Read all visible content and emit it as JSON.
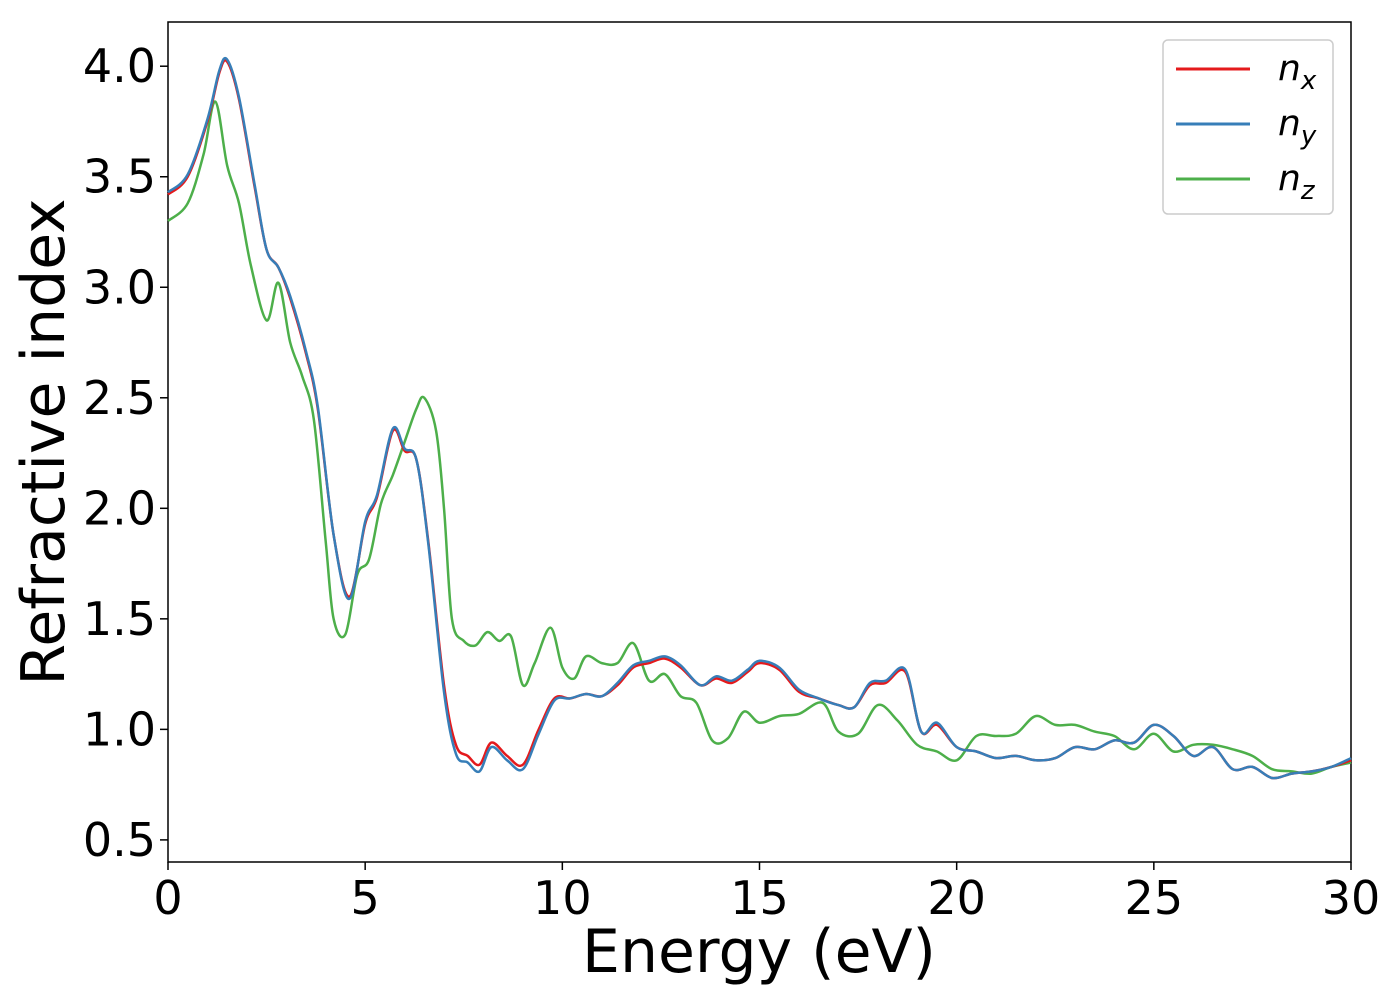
{
  "chart_data": {
    "type": "line",
    "xlabel": "Energy (eV)",
    "ylabel": "Refractive index",
    "xlim": [
      0,
      30
    ],
    "ylim": [
      0.4,
      4.2
    ],
    "xticks": [
      0,
      5,
      10,
      15,
      20,
      25,
      30
    ],
    "xtick_labels": [
      "0",
      "5",
      "10",
      "15",
      "20",
      "25",
      "30"
    ],
    "yticks": [
      0.5,
      1.0,
      1.5,
      2.0,
      2.5,
      3.0,
      3.5,
      4.0
    ],
    "ytick_labels": [
      "0.5",
      "1.0",
      "1.5",
      "2.0",
      "2.5",
      "3.0",
      "3.5",
      "4.0"
    ],
    "grid": false,
    "legend_position": "top-right",
    "series": [
      {
        "name": "n",
        "subscript": "x",
        "color": "#e41a1c",
        "x": [
          0,
          0.5,
          1.0,
          1.3,
          1.5,
          1.8,
          2.2,
          2.5,
          2.8,
          3.1,
          3.5,
          3.8,
          4.2,
          4.6,
          5.0,
          5.3,
          5.7,
          6.0,
          6.3,
          6.6,
          7.0,
          7.3,
          7.6,
          7.9,
          8.2,
          8.6,
          9.0,
          9.4,
          9.8,
          10.2,
          10.6,
          11.0,
          11.4,
          11.8,
          12.2,
          12.6,
          13.0,
          13.5,
          13.9,
          14.3,
          14.7,
          15.0,
          15.5,
          16.0,
          16.5,
          17.0,
          17.4,
          17.8,
          18.2,
          18.7,
          19.1,
          19.5,
          20.0,
          20.5,
          21.0,
          21.5,
          22.0,
          22.5,
          23.0,
          23.5,
          24.0,
          24.5,
          25.0,
          25.5,
          26.0,
          26.5,
          27.0,
          27.5,
          28.0,
          28.5,
          29.0,
          29.5,
          30.0
        ],
        "y": [
          3.42,
          3.5,
          3.75,
          3.97,
          4.02,
          3.85,
          3.45,
          3.17,
          3.09,
          2.95,
          2.7,
          2.45,
          1.88,
          1.6,
          1.93,
          2.05,
          2.35,
          2.26,
          2.22,
          1.85,
          1.2,
          0.93,
          0.88,
          0.84,
          0.94,
          0.88,
          0.84,
          1.0,
          1.14,
          1.14,
          1.16,
          1.15,
          1.2,
          1.28,
          1.3,
          1.32,
          1.28,
          1.2,
          1.23,
          1.21,
          1.26,
          1.3,
          1.27,
          1.17,
          1.14,
          1.11,
          1.1,
          1.2,
          1.21,
          1.26,
          0.99,
          1.02,
          0.92,
          0.9,
          0.87,
          0.88,
          0.86,
          0.87,
          0.92,
          0.91,
          0.95,
          0.94,
          1.02,
          0.97,
          0.88,
          0.92,
          0.82,
          0.83,
          0.78,
          0.8,
          0.81,
          0.83,
          0.86
        ]
      },
      {
        "name": "n",
        "subscript": "y",
        "color": "#377eb8",
        "x": [
          0,
          0.5,
          1.0,
          1.3,
          1.5,
          1.8,
          2.2,
          2.5,
          2.8,
          3.1,
          3.5,
          3.8,
          4.2,
          4.6,
          5.0,
          5.3,
          5.7,
          6.0,
          6.3,
          6.6,
          7.0,
          7.3,
          7.6,
          7.9,
          8.2,
          8.6,
          9.0,
          9.4,
          9.8,
          10.2,
          10.6,
          11.0,
          11.4,
          11.8,
          12.2,
          12.6,
          13.0,
          13.5,
          13.9,
          14.3,
          14.7,
          15.0,
          15.5,
          16.0,
          16.5,
          17.0,
          17.4,
          17.8,
          18.2,
          18.7,
          19.1,
          19.5,
          20.0,
          20.5,
          21.0,
          21.5,
          22.0,
          22.5,
          23.0,
          23.5,
          24.0,
          24.5,
          25.0,
          25.5,
          26.0,
          26.5,
          27.0,
          27.5,
          28.0,
          28.5,
          29.0,
          29.5,
          30.0
        ],
        "y": [
          3.43,
          3.51,
          3.76,
          3.98,
          4.03,
          3.86,
          3.46,
          3.17,
          3.09,
          2.96,
          2.71,
          2.46,
          1.88,
          1.59,
          1.94,
          2.06,
          2.36,
          2.27,
          2.22,
          1.84,
          1.17,
          0.89,
          0.85,
          0.81,
          0.92,
          0.86,
          0.82,
          0.98,
          1.13,
          1.14,
          1.16,
          1.15,
          1.21,
          1.29,
          1.31,
          1.33,
          1.29,
          1.2,
          1.24,
          1.22,
          1.27,
          1.31,
          1.28,
          1.18,
          1.14,
          1.11,
          1.1,
          1.21,
          1.22,
          1.27,
          0.99,
          1.03,
          0.92,
          0.9,
          0.87,
          0.88,
          0.86,
          0.87,
          0.92,
          0.91,
          0.95,
          0.94,
          1.02,
          0.97,
          0.88,
          0.92,
          0.82,
          0.83,
          0.78,
          0.8,
          0.81,
          0.83,
          0.87
        ]
      },
      {
        "name": "n",
        "subscript": "z",
        "color": "#4daf4a",
        "x": [
          0,
          0.5,
          0.9,
          1.2,
          1.5,
          1.8,
          2.1,
          2.5,
          2.8,
          3.1,
          3.4,
          3.7,
          4.0,
          4.2,
          4.5,
          4.8,
          5.1,
          5.4,
          5.7,
          6.0,
          6.3,
          6.5,
          6.8,
          7.0,
          7.2,
          7.5,
          7.8,
          8.1,
          8.4,
          8.7,
          9.0,
          9.3,
          9.7,
          10.0,
          10.3,
          10.6,
          11.0,
          11.4,
          11.8,
          12.2,
          12.6,
          13.0,
          13.4,
          13.8,
          14.2,
          14.6,
          15.0,
          15.5,
          16.0,
          16.6,
          17.0,
          17.5,
          18.0,
          18.5,
          19.0,
          19.5,
          20.0,
          20.5,
          21.0,
          21.5,
          22.0,
          22.5,
          23.0,
          23.5,
          24.0,
          24.5,
          25.0,
          25.5,
          26.0,
          26.5,
          27.0,
          27.5,
          28.0,
          28.5,
          29.0,
          29.5,
          30.0
        ],
        "y": [
          3.3,
          3.38,
          3.6,
          3.84,
          3.55,
          3.38,
          3.1,
          2.85,
          3.02,
          2.75,
          2.6,
          2.4,
          1.85,
          1.5,
          1.43,
          1.7,
          1.77,
          2.02,
          2.15,
          2.3,
          2.45,
          2.5,
          2.35,
          2.0,
          1.5,
          1.4,
          1.38,
          1.44,
          1.4,
          1.42,
          1.2,
          1.3,
          1.46,
          1.28,
          1.23,
          1.33,
          1.3,
          1.3,
          1.39,
          1.22,
          1.25,
          1.15,
          1.12,
          0.95,
          0.96,
          1.08,
          1.03,
          1.06,
          1.07,
          1.12,
          0.99,
          0.98,
          1.11,
          1.04,
          0.93,
          0.9,
          0.86,
          0.97,
          0.97,
          0.98,
          1.06,
          1.02,
          1.02,
          0.99,
          0.97,
          0.91,
          0.98,
          0.9,
          0.93,
          0.93,
          0.91,
          0.88,
          0.82,
          0.81,
          0.8,
          0.83,
          0.85
        ]
      }
    ]
  }
}
